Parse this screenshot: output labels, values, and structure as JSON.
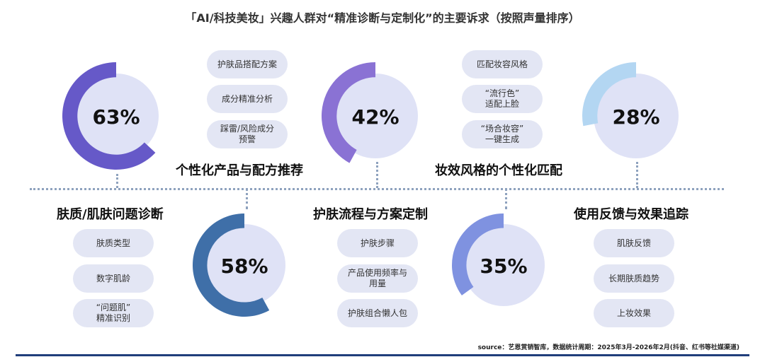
{
  "title": "「AI/科技美妆」兴趣人群对“精准诊断与定制化”的主要诉求（按照声量排序）",
  "source": "source：艺恩赏销智库，数据统计周期：2025年3月-2026年2月(抖音、红书等社媒渠道)",
  "chart_data": {
    "type": "pie",
    "style": "donut-progress",
    "categories": [
      "个性化产品与配方推荐",
      "肤质/肌肤问题诊断",
      "妆效风格的个性化匹配",
      "护肤流程与方案定制",
      "使用反馈与效果追踪"
    ],
    "values": [
      63,
      58,
      42,
      35,
      28
    ],
    "unit": "%",
    "labels": [
      "63%",
      "58%",
      "42%",
      "35%",
      "28%"
    ],
    "colors": [
      "#6659c8",
      "#3f6fa8",
      "#8a72d4",
      "#7f92e0",
      "#b3d6f2"
    ]
  },
  "groups": [
    {
      "title": "个性化产品与配方推荐",
      "pct": "63%",
      "pills": [
        "护肤品搭配方案",
        "成分精准分析",
        "踩雷/风险成分\n预警"
      ]
    },
    {
      "title": "肤质/肌肤问题诊断",
      "pct": "58%",
      "pills": [
        "肤质类型",
        "数字肌龄",
        "“问题肌”\n精准识别"
      ]
    },
    {
      "title": "妆效风格的个性化匹配",
      "pct": "42%",
      "pills": [
        "匹配妆容风格",
        "“流行色”\n适配上脸",
        "“场合妆容”\n一键生成"
      ]
    },
    {
      "title": "护肤流程与方案定制",
      "pct": "35%",
      "pills": [
        "护肤步骤",
        "产品使用频率与\n用量",
        "护肤组合懒人包"
      ]
    },
    {
      "title": "使用反馈与效果追踪",
      "pct": "28%",
      "pills": [
        "肌肤反馈",
        "长期肤质趋势",
        "上妆效果"
      ]
    }
  ]
}
